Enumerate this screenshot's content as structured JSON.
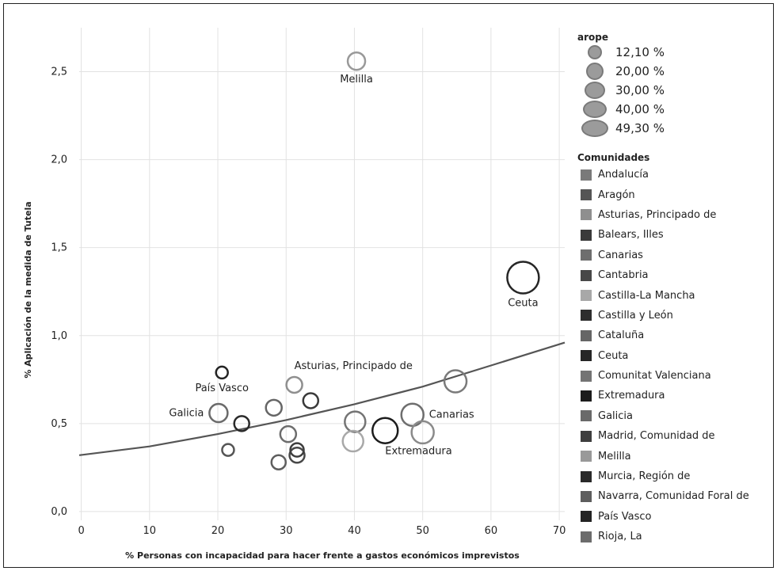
{
  "chart_data": {
    "type": "scatter",
    "title": "",
    "xlabel": "% Personas con incapacidad para hacer frente a gastos económicos imprevistos",
    "ylabel": "% Aplicación de la medida de Tutela",
    "xlim": [
      -0.3,
      70.8
    ],
    "ylim": [
      -0.05,
      2.75
    ],
    "x_ticks": [
      "0",
      "10",
      "20",
      "30",
      "40",
      "50",
      "60",
      "70"
    ],
    "y_ticks": [
      "0,0",
      "0,5",
      "1,0",
      "1,5",
      "2,0",
      "2,5"
    ],
    "grid": true,
    "size_legend": {
      "title": "arope",
      "items": [
        {
          "label": "12,10 %",
          "value": 12.1
        },
        {
          "label": "20,00 %",
          "value": 20.0
        },
        {
          "label": "30,00 %",
          "value": 30.0
        },
        {
          "label": "40,00 %",
          "value": 40.0
        },
        {
          "label": "49,30 %",
          "value": 49.3
        }
      ]
    },
    "color_legend": {
      "title": "Comunidades",
      "items": [
        {
          "name": "Andalucía",
          "color": "#7a7a7a"
        },
        {
          "name": "Aragón",
          "color": "#555555"
        },
        {
          "name": "Asturias, Principado de",
          "color": "#8f8f8f"
        },
        {
          "name": "Balears, Illes",
          "color": "#3a3a3a"
        },
        {
          "name": "Canarias",
          "color": "#6e6e6e"
        },
        {
          "name": "Cantabria",
          "color": "#484848"
        },
        {
          "name": "Castilla-La Mancha",
          "color": "#a8a8a8"
        },
        {
          "name": "Castilla y León",
          "color": "#2e2e2e"
        },
        {
          "name": "Cataluña",
          "color": "#666666"
        },
        {
          "name": "Ceuta",
          "color": "#262626"
        },
        {
          "name": "Comunitat Valenciana",
          "color": "#747474"
        },
        {
          "name": "Extremadura",
          "color": "#1c1c1c"
        },
        {
          "name": "Galicia",
          "color": "#6a6a6a"
        },
        {
          "name": "Madrid, Comunidad de",
          "color": "#3e3e3e"
        },
        {
          "name": "Melilla",
          "color": "#999999"
        },
        {
          "name": "Murcia, Región de",
          "color": "#2a2a2a"
        },
        {
          "name": "Navarra, Comunidad Foral de",
          "color": "#5e5e5e"
        },
        {
          "name": "País Vasco",
          "color": "#242424"
        },
        {
          "name": "Rioja, La",
          "color": "#6c6c6c"
        }
      ]
    },
    "points": [
      {
        "x": 40.3,
        "y": 2.56,
        "size": 22,
        "color": "#999999",
        "label": "Melilla",
        "label_pos": "below"
      },
      {
        "x": 64.7,
        "y": 1.33,
        "size": 40,
        "color": "#262626",
        "label": "Ceuta",
        "label_pos": "below"
      },
      {
        "x": 20.6,
        "y": 0.79,
        "size": 15,
        "color": "#242424",
        "label": "País Vasco",
        "label_pos": "below"
      },
      {
        "x": 31.2,
        "y": 0.72,
        "size": 20,
        "color": "#8f8f8f",
        "label": "Asturias, Principado de",
        "label_pos": "above-right"
      },
      {
        "x": 54.8,
        "y": 0.74,
        "size": 28,
        "color": "#7a7a7a",
        "label": "",
        "label_pos": "none"
      },
      {
        "x": 48.5,
        "y": 0.55,
        "size": 28,
        "color": "#6e6e6e",
        "label": "Canarias",
        "label_pos": "right"
      },
      {
        "x": 20.1,
        "y": 0.56,
        "size": 23,
        "color": "#6a6a6a",
        "label": "Galicia",
        "label_pos": "left"
      },
      {
        "x": 23.5,
        "y": 0.5,
        "size": 19,
        "color": "#2a2a2a",
        "label": "",
        "label_pos": "none"
      },
      {
        "x": 28.2,
        "y": 0.59,
        "size": 20,
        "color": "#666666",
        "label": "",
        "label_pos": "none"
      },
      {
        "x": 33.6,
        "y": 0.63,
        "size": 19,
        "color": "#3a3a3a",
        "label": "",
        "label_pos": "none"
      },
      {
        "x": 40.1,
        "y": 0.51,
        "size": 26,
        "color": "#747474",
        "label": "",
        "label_pos": "none"
      },
      {
        "x": 39.8,
        "y": 0.4,
        "size": 26,
        "color": "#a8a8a8",
        "label": "",
        "label_pos": "none"
      },
      {
        "x": 44.5,
        "y": 0.46,
        "size": 32,
        "color": "#1c1c1c",
        "label": "Extremadura",
        "label_pos": "below-right"
      },
      {
        "x": 50.0,
        "y": 0.45,
        "size": 28,
        "color": "#8a8a8a",
        "label": "",
        "label_pos": "none"
      },
      {
        "x": 30.3,
        "y": 0.44,
        "size": 20,
        "color": "#6c6c6c",
        "label": "",
        "label_pos": "none"
      },
      {
        "x": 31.6,
        "y": 0.35,
        "size": 17,
        "color": "#3e3e3e",
        "label": "",
        "label_pos": "none"
      },
      {
        "x": 31.6,
        "y": 0.32,
        "size": 19,
        "color": "#484848",
        "label": "",
        "label_pos": "none"
      },
      {
        "x": 21.5,
        "y": 0.35,
        "size": 15,
        "color": "#555555",
        "label": "",
        "label_pos": "none"
      },
      {
        "x": 28.9,
        "y": 0.28,
        "size": 18,
        "color": "#5e5e5e",
        "label": "",
        "label_pos": "none"
      }
    ],
    "trend_line": {
      "type": "exponential",
      "color": "#555555",
      "points": [
        [
          -0.3,
          0.32
        ],
        [
          10,
          0.37
        ],
        [
          20,
          0.44
        ],
        [
          30,
          0.52
        ],
        [
          40,
          0.61
        ],
        [
          50,
          0.71
        ],
        [
          60,
          0.83
        ],
        [
          70.8,
          0.96
        ]
      ]
    }
  }
}
